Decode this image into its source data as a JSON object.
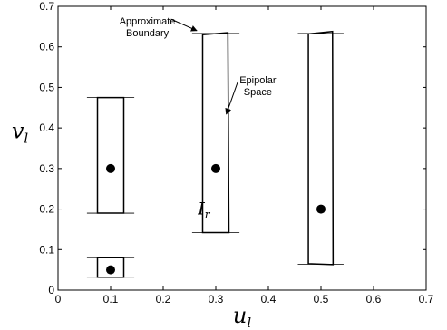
{
  "chart_data": {
    "type": "scatter",
    "xlim": [
      0,
      0.7
    ],
    "ylim": [
      0,
      0.7
    ],
    "xticks": [
      "0",
      "0.1",
      "0.2",
      "0.3",
      "0.4",
      "0.5",
      "0.6",
      "0.7"
    ],
    "yticks": [
      "0",
      "0.1",
      "0.2",
      "0.3",
      "0.4",
      "0.5",
      "0.6",
      "0.7"
    ],
    "xlabel": {
      "base": "u",
      "sub": "l"
    },
    "ylabel": {
      "base": "v",
      "sub": "l"
    },
    "grid": false,
    "points": [
      {
        "x": 0.1,
        "y": 0.05
      },
      {
        "x": 0.1,
        "y": 0.3
      },
      {
        "x": 0.3,
        "y": 0.3
      },
      {
        "x": 0.5,
        "y": 0.2
      }
    ],
    "regions": [
      {
        "corners": [
          [
            0.075,
            0.032
          ],
          [
            0.125,
            0.032
          ],
          [
            0.125,
            0.08
          ],
          [
            0.075,
            0.08
          ]
        ],
        "bound_lines": [
          [
            0.055,
            0.145,
            0.032
          ],
          [
            0.055,
            0.145,
            0.08
          ]
        ]
      },
      {
        "corners": [
          [
            0.075,
            0.19
          ],
          [
            0.125,
            0.19
          ],
          [
            0.125,
            0.475
          ],
          [
            0.075,
            0.475
          ]
        ],
        "bound_lines": [
          [
            0.055,
            0.145,
            0.19
          ],
          [
            0.055,
            0.145,
            0.475
          ]
        ]
      },
      {
        "corners": [
          [
            0.275,
            0.142
          ],
          [
            0.325,
            0.142
          ],
          [
            0.323,
            0.635
          ],
          [
            0.275,
            0.63
          ]
        ],
        "bound_lines": [
          [
            0.255,
            0.345,
            0.142
          ],
          [
            0.255,
            0.345,
            0.633
          ]
        ]
      },
      {
        "corners": [
          [
            0.476,
            0.065
          ],
          [
            0.523,
            0.063
          ],
          [
            0.522,
            0.638
          ],
          [
            0.476,
            0.632
          ]
        ],
        "bound_lines": [
          [
            0.456,
            0.543,
            0.064
          ],
          [
            0.456,
            0.543,
            0.633
          ]
        ]
      }
    ],
    "annotations": [
      {
        "lines": [
          "Approximate",
          "Boundary"
        ],
        "text_at": [
          0.17,
          0.655
        ],
        "arrow_to": [
          0.264,
          0.64
        ]
      },
      {
        "lines": [
          "Epipolar",
          "Space"
        ],
        "text_at": [
          0.38,
          0.51
        ],
        "arrow_to": [
          0.32,
          0.434
        ]
      }
    ],
    "region_label": {
      "base": "I",
      "sub": "r",
      "at": [
        0.29,
        0.2
      ]
    }
  }
}
